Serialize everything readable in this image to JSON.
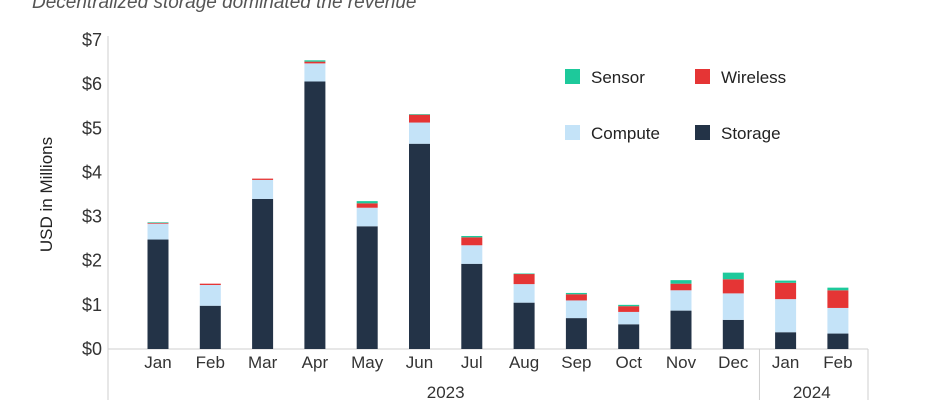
{
  "subtitle": "Decentralized storage dominated the revenue",
  "chart_data": {
    "type": "bar",
    "stacked": true,
    "ylabel": "USD in Millions",
    "ylim": [
      0,
      7
    ],
    "yticks": [
      0,
      1,
      2,
      3,
      4,
      5,
      6,
      7
    ],
    "ytick_labels": [
      "$0",
      "$1",
      "$2",
      "$3",
      "$4",
      "$5",
      "$6",
      "$7"
    ],
    "categories": [
      "Jan",
      "Feb",
      "Mar",
      "Apr",
      "May",
      "Jun",
      "Jul",
      "Aug",
      "Sep",
      "Oct",
      "Nov",
      "Dec",
      "Jan",
      "Feb"
    ],
    "year_groups": [
      {
        "label": "2023",
        "count": 12
      },
      {
        "label": "2024",
        "count": 2
      }
    ],
    "series": [
      {
        "name": "Storage",
        "color": "#233347",
        "values": [
          2.48,
          0.98,
          3.4,
          6.06,
          2.78,
          4.65,
          1.93,
          1.05,
          0.7,
          0.56,
          0.87,
          0.66,
          0.38,
          0.35
        ]
      },
      {
        "name": "Compute",
        "color": "#c4e3f8",
        "values": [
          0.36,
          0.47,
          0.43,
          0.41,
          0.42,
          0.48,
          0.42,
          0.42,
          0.4,
          0.28,
          0.46,
          0.6,
          0.75,
          0.58
        ]
      },
      {
        "name": "Wireless",
        "color": "#e53535",
        "values": [
          0.02,
          0.03,
          0.03,
          0.04,
          0.1,
          0.18,
          0.18,
          0.23,
          0.14,
          0.13,
          0.15,
          0.32,
          0.37,
          0.4
        ]
      },
      {
        "name": "Sensor",
        "color": "#1dc99b",
        "values": [
          0.01,
          0.0,
          0.0,
          0.03,
          0.05,
          0.01,
          0.03,
          0.01,
          0.03,
          0.03,
          0.08,
          0.15,
          0.05,
          0.06
        ]
      }
    ],
    "legend": {
      "placement": "top-right",
      "order": [
        "Sensor",
        "Wireless",
        "Compute",
        "Storage"
      ]
    },
    "grid": false
  }
}
